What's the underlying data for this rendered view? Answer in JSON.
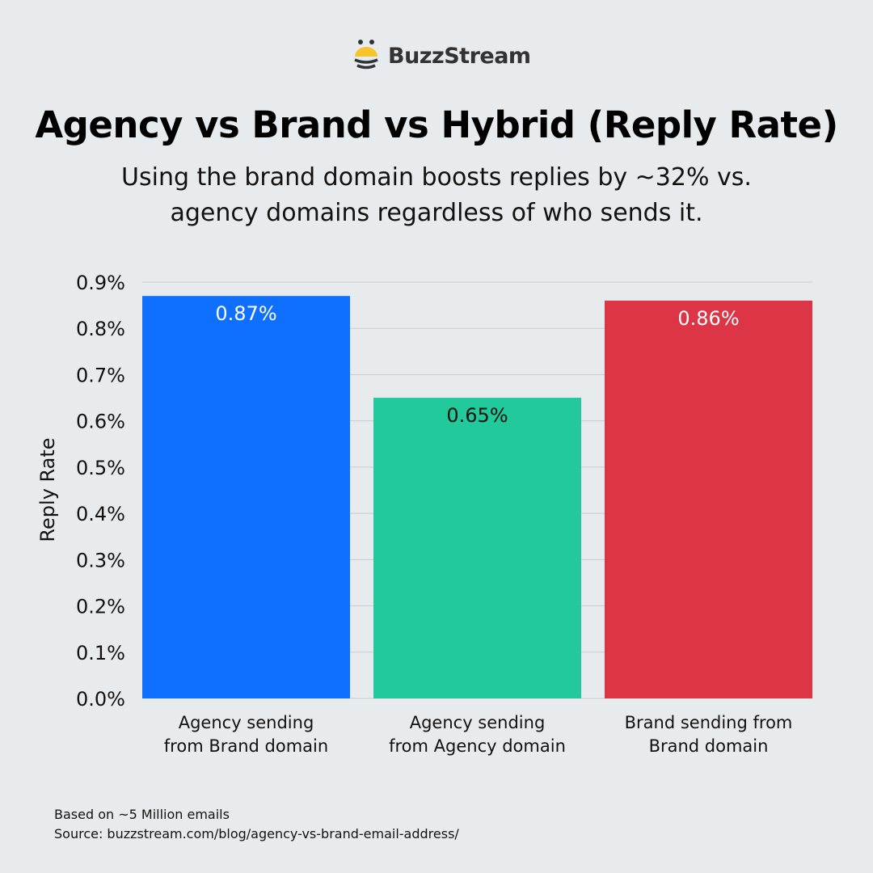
{
  "brand": {
    "name": "BuzzStream",
    "logo_icon": "bee-icon",
    "colors": {
      "yellow": "#f7c52b",
      "dark": "#2f3338"
    }
  },
  "header": {
    "title": "Agency vs Brand vs Hybrid (Reply Rate)",
    "subtitle": "Using the brand domain boosts replies by ~32% vs. agency domains regardless of who sends it."
  },
  "chart_data": {
    "type": "bar",
    "title": "Agency vs Brand vs Hybrid (Reply Rate)",
    "categories": [
      [
        "Agency sending",
        "from Brand domain"
      ],
      [
        "Agency sending",
        "from Agency domain"
      ],
      [
        "Brand sending from",
        "Brand domain"
      ]
    ],
    "values": [
      0.87,
      0.65,
      0.86
    ],
    "data_labels": [
      "0.87%",
      "0.65%",
      "0.86%"
    ],
    "colors": [
      "#0f6fff",
      "#22c99a",
      "#dc3545"
    ],
    "label_colors": [
      "#ffffff",
      "#111111",
      "#ffffff"
    ],
    "xlabel": "",
    "ylabel": "Reply Rate",
    "ylim": [
      0,
      0.9
    ],
    "yticks": [
      0.0,
      0.1,
      0.2,
      0.3,
      0.4,
      0.5,
      0.6,
      0.7,
      0.8,
      0.9
    ],
    "ytick_labels": [
      "0.0%",
      "0.1%",
      "0.2%",
      "0.3%",
      "0.4%",
      "0.5%",
      "0.6%",
      "0.7%",
      "0.8%",
      "0.9%"
    ],
    "grid": true,
    "legend": "none"
  },
  "footer": {
    "note": "Based on ~5 Million emails",
    "source": "Source: buzzstream.com/blog/agency-vs-brand-email-address/"
  }
}
